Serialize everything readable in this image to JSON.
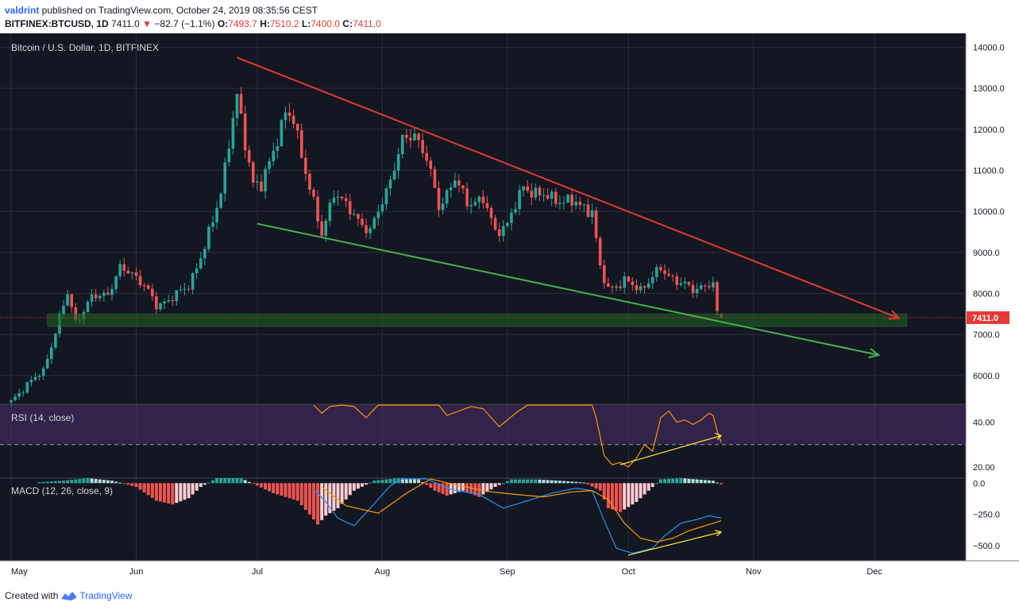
{
  "header": {
    "username": "valdrint",
    "published_text": " published on TradingView.com, October 24, 2019 08:35:56 CEST",
    "symbol": "BITFINEX:BTCUSD, 1D",
    "last": "7411.0",
    "change": "−82.7 (−1.1%)",
    "o_label": "O:",
    "o_value": "7493.7",
    "h_label": "H:",
    "h_value": "7510.2",
    "l_label": "L:",
    "l_value": "7400.0",
    "c_label": "C:",
    "c_value": "7411.0"
  },
  "footer": {
    "created_with": "Created with",
    "brand": "TradingView",
    "logo_icon": "tradingview-logo-icon"
  },
  "colors": {
    "bg": "#131722",
    "grid": "#2a2e39",
    "up": "#26a69a",
    "down": "#ef5350",
    "red_trend": "#e53935",
    "green_trend": "#4caf50",
    "rsi_line": "#ff9800",
    "rsi_band": "#4a2e6a",
    "macd_line": "#2196f3",
    "signal_line": "#ff9800",
    "price_label": "#e53935",
    "support_zone": "#1b5e20"
  },
  "chart_data": [
    {
      "type": "candlestick",
      "title": "Bitcoin / U.S. Dollar, 1D, BITFINEX",
      "price_axis_ticks": [
        "14000.0",
        "13000.0",
        "12000.0",
        "11000.0",
        "10000.0",
        "9000.0",
        "8000.0",
        "7000.0",
        "6000.0"
      ],
      "ylim": [
        5300,
        14300
      ],
      "x_ticks": [
        "May",
        "Jun",
        "Jul",
        "Aug",
        "Sep",
        "Oct",
        "Nov",
        "Dec"
      ],
      "last_price_label": "7411.0",
      "waypoints": [
        [
          "2019-05-01",
          5350
        ],
        [
          "2019-05-05",
          5800
        ],
        [
          "2019-05-09",
          6100
        ],
        [
          "2019-05-13",
          7400
        ],
        [
          "2019-05-15",
          8000
        ],
        [
          "2019-05-17",
          7300
        ],
        [
          "2019-05-21",
          7900
        ],
        [
          "2019-05-25",
          8000
        ],
        [
          "2019-05-28",
          8600
        ],
        [
          "2019-05-31",
          8500
        ],
        [
          "2019-06-03",
          8200
        ],
        [
          "2019-06-06",
          7700
        ],
        [
          "2019-06-10",
          7900
        ],
        [
          "2019-06-14",
          8200
        ],
        [
          "2019-06-18",
          9100
        ],
        [
          "2019-06-22",
          10500
        ],
        [
          "2019-06-26",
          12800
        ],
        [
          "2019-06-28",
          11700
        ],
        [
          "2019-06-30",
          10700
        ],
        [
          "2019-07-02",
          10600
        ],
        [
          "2019-07-05",
          11500
        ],
        [
          "2019-07-08",
          12400
        ],
        [
          "2019-07-10",
          12200
        ],
        [
          "2019-07-14",
          10600
        ],
        [
          "2019-07-17",
          9400
        ],
        [
          "2019-07-20",
          10500
        ],
        [
          "2019-07-25",
          9900
        ],
        [
          "2019-07-29",
          9500
        ],
        [
          "2019-08-02",
          10500
        ],
        [
          "2019-08-06",
          11700
        ],
        [
          "2019-08-09",
          11900
        ],
        [
          "2019-08-12",
          11300
        ],
        [
          "2019-08-15",
          10100
        ],
        [
          "2019-08-19",
          10800
        ],
        [
          "2019-08-22",
          10200
        ],
        [
          "2019-08-26",
          10300
        ],
        [
          "2019-08-29",
          9500
        ],
        [
          "2019-09-01",
          9700
        ],
        [
          "2019-09-05",
          10600
        ],
        [
          "2019-09-09",
          10400
        ],
        [
          "2019-09-13",
          10300
        ],
        [
          "2019-09-18",
          10200
        ],
        [
          "2019-09-22",
          10000
        ],
        [
          "2019-09-24",
          8600
        ],
        [
          "2019-09-26",
          8100
        ],
        [
          "2019-09-30",
          8300
        ],
        [
          "2019-10-04",
          8100
        ],
        [
          "2019-10-09",
          8600
        ],
        [
          "2019-10-13",
          8300
        ],
        [
          "2019-10-17",
          8100
        ],
        [
          "2019-10-20",
          8200
        ],
        [
          "2019-10-22",
          8200
        ],
        [
          "2019-10-23",
          7493.7
        ],
        [
          "2019-10-24",
          7411.0
        ]
      ],
      "last_candle": {
        "date": "2019-10-24",
        "open": 7493.7,
        "high": 7510.2,
        "low": 7400.0,
        "close": 7411.0
      },
      "red_trendline": [
        [
          "2019-06-26",
          13750
        ],
        [
          "2019-12-07",
          7400
        ]
      ],
      "green_trendline": [
        [
          "2019-07-01",
          9700
        ],
        [
          "2019-12-02",
          6500
        ]
      ],
      "support_zone": [
        7200,
        7500
      ]
    },
    {
      "type": "line",
      "title": "RSI (14, close)",
      "axis_ticks": [
        "40.00",
        "20.00"
      ],
      "ylim": [
        15,
        48
      ],
      "band": [
        30,
        48
      ],
      "series": [
        {
          "values": [
            [
              "2019-07-15",
              50
            ],
            [
              "2019-07-17",
              44
            ],
            [
              "2019-07-19",
              47
            ],
            [
              "2019-07-22",
              50
            ],
            [
              "2019-07-25",
              47
            ],
            [
              "2019-07-28",
              42
            ],
            [
              "2019-07-31",
              48
            ],
            [
              "2019-08-05",
              60
            ],
            [
              "2019-08-15",
              48
            ],
            [
              "2019-08-17",
              43
            ],
            [
              "2019-08-20",
              45
            ],
            [
              "2019-08-23",
              47
            ],
            [
              "2019-08-26",
              46
            ],
            [
              "2019-08-30",
              38
            ],
            [
              "2019-09-03",
              44
            ],
            [
              "2019-09-06",
              50
            ],
            [
              "2019-09-22",
              48
            ],
            [
              "2019-09-23",
              42
            ],
            [
              "2019-09-25",
              25
            ],
            [
              "2019-09-27",
              21
            ],
            [
              "2019-09-29",
              22
            ],
            [
              "2019-10-01",
              20
            ],
            [
              "2019-10-03",
              24
            ],
            [
              "2019-10-05",
              30
            ],
            [
              "2019-10-07",
              27
            ],
            [
              "2019-10-09",
              42
            ],
            [
              "2019-10-11",
              45
            ],
            [
              "2019-10-13",
              40
            ],
            [
              "2019-10-15",
              41
            ],
            [
              "2019-10-17",
              39
            ],
            [
              "2019-10-19",
              41
            ],
            [
              "2019-10-21",
              44
            ],
            [
              "2019-10-22",
              43
            ],
            [
              "2019-10-23",
              36
            ],
            [
              "2019-10-24",
              31
            ]
          ]
        }
      ],
      "divergence_line": [
        [
          "2019-09-29",
          21
        ],
        [
          "2019-10-24",
          34
        ]
      ]
    },
    {
      "type": "bar",
      "title": "MACD (12, 26, close, 9)",
      "axis_ticks": [
        "0.0",
        "−250.0",
        "−500.0"
      ],
      "ylim": [
        -620,
        40
      ],
      "histogram": [
        [
          "2019-05-08",
          8
        ],
        [
          "2019-05-14",
          20
        ],
        [
          "2019-05-20",
          40
        ],
        [
          "2019-05-26",
          20
        ],
        [
          "2019-06-01",
          -30
        ],
        [
          "2019-06-06",
          -140
        ],
        [
          "2019-06-10",
          -170
        ],
        [
          "2019-06-14",
          -120
        ],
        [
          "2019-06-17",
          -30
        ],
        [
          "2019-06-21",
          40
        ],
        [
          "2019-06-27",
          40
        ],
        [
          "2019-07-01",
          -20
        ],
        [
          "2019-07-05",
          -80
        ],
        [
          "2019-07-09",
          -120
        ],
        [
          "2019-07-11",
          -140
        ],
        [
          "2019-07-14",
          -250
        ],
        [
          "2019-07-16",
          -330
        ],
        [
          "2019-07-18",
          -260
        ],
        [
          "2019-07-21",
          -200
        ],
        [
          "2019-07-25",
          -60
        ],
        [
          "2019-07-30",
          20
        ],
        [
          "2019-08-05",
          40
        ],
        [
          "2019-08-10",
          30
        ],
        [
          "2019-08-14",
          -60
        ],
        [
          "2019-08-17",
          -100
        ],
        [
          "2019-08-21",
          -60
        ],
        [
          "2019-08-25",
          -110
        ],
        [
          "2019-08-29",
          -30
        ],
        [
          "2019-09-02",
          30
        ],
        [
          "2019-09-08",
          30
        ],
        [
          "2019-09-14",
          20
        ],
        [
          "2019-09-20",
          5
        ],
        [
          "2019-09-24",
          -60
        ],
        [
          "2019-09-26",
          -200
        ],
        [
          "2019-09-29",
          -230
        ],
        [
          "2019-10-03",
          -150
        ],
        [
          "2019-10-06",
          -60
        ],
        [
          "2019-10-09",
          30
        ],
        [
          "2019-10-14",
          40
        ],
        [
          "2019-10-18",
          30
        ],
        [
          "2019-10-22",
          20
        ],
        [
          "2019-10-24",
          -10
        ]
      ],
      "series": [
        {
          "values": [
            [
              "2019-07-15",
              -50
            ],
            [
              "2019-07-18",
              -150
            ],
            [
              "2019-07-21",
              -280
            ],
            [
              "2019-07-25",
              -340
            ],
            [
              "2019-07-29",
              -200
            ],
            [
              "2019-08-03",
              -20
            ],
            [
              "2019-08-06",
              50
            ],
            [
              "2019-08-12",
              60
            ],
            [
              "2019-08-18",
              -50
            ],
            [
              "2019-08-25",
              -90
            ],
            [
              "2019-08-31",
              -200
            ],
            [
              "2019-09-06",
              -140
            ],
            [
              "2019-09-12",
              -80
            ],
            [
              "2019-09-18",
              -40
            ],
            [
              "2019-09-22",
              -60
            ],
            [
              "2019-09-25",
              -300
            ],
            [
              "2019-09-28",
              -520
            ],
            [
              "2019-10-02",
              -560
            ],
            [
              "2019-10-07",
              -520
            ],
            [
              "2019-10-10",
              -420
            ],
            [
              "2019-10-14",
              -320
            ],
            [
              "2019-10-18",
              -290
            ],
            [
              "2019-10-21",
              -260
            ],
            [
              "2019-10-24",
              -280
            ]
          ]
        },
        {
          "values": [
            [
              "2019-07-17",
              -30
            ],
            [
              "2019-07-23",
              -180
            ],
            [
              "2019-07-31",
              -240
            ],
            [
              "2019-08-07",
              -80
            ],
            [
              "2019-08-13",
              40
            ],
            [
              "2019-08-20",
              -20
            ],
            [
              "2019-08-28",
              -70
            ],
            [
              "2019-09-03",
              -90
            ],
            [
              "2019-09-10",
              -110
            ],
            [
              "2019-09-17",
              -70
            ],
            [
              "2019-09-22",
              -60
            ],
            [
              "2019-09-26",
              -130
            ],
            [
              "2019-09-30",
              -320
            ],
            [
              "2019-10-04",
              -440
            ],
            [
              "2019-10-08",
              -470
            ],
            [
              "2019-10-12",
              -440
            ],
            [
              "2019-10-16",
              -380
            ],
            [
              "2019-10-20",
              -340
            ],
            [
              "2019-10-24",
              -300
            ]
          ]
        }
      ],
      "divergence_line": [
        [
          "2019-10-01",
          -575
        ],
        [
          "2019-10-24",
          -390
        ]
      ]
    }
  ]
}
